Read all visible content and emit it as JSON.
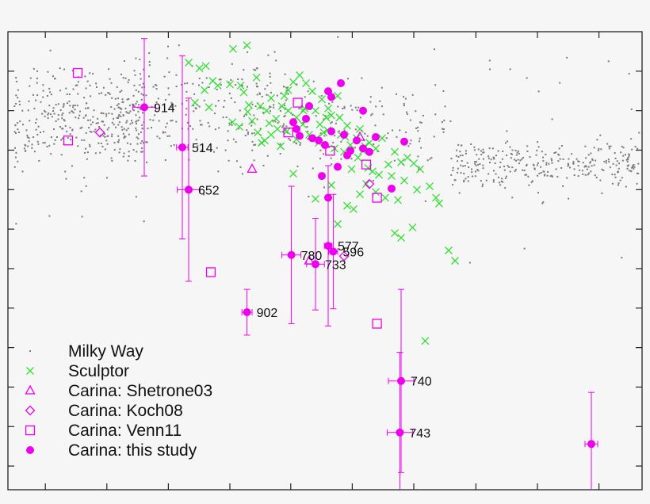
{
  "chart_data": {
    "type": "scatter",
    "title": "",
    "xlabel": "",
    "ylabel": "",
    "xlim": [
      0,
      100
    ],
    "ylim": [
      -3.0,
      1.0
    ],
    "grid": false,
    "legend_position": "bottom-left",
    "colors": {
      "milky_way": "#7a7a7a",
      "sculptor": "#33dd33",
      "carina": "#ee00ee"
    },
    "series": [
      {
        "name": "Milky Way",
        "marker": "dot",
        "color": "#7a7a7a",
        "regions": [
          {
            "x_range": [
              1,
              22
            ],
            "y_center": 0.25,
            "y_spread": 0.28,
            "count": 360
          },
          {
            "x_range": [
              15,
              45
            ],
            "y_center": 0.3,
            "y_spread": 0.32,
            "count": 260
          },
          {
            "x_range": [
              45,
              70
            ],
            "y_center": 0.18,
            "y_spread": 0.25,
            "count": 140
          },
          {
            "x_range": [
              70,
              100
            ],
            "y_center": -0.15,
            "y_spread": 0.14,
            "count": 320
          }
        ]
      },
      {
        "name": "Sculptor",
        "marker": "x",
        "color": "#33dd33",
        "points": [
          [
            31.2,
            0.7
          ],
          [
            35.5,
            0.85
          ],
          [
            37.7,
            0.88
          ],
          [
            30.2,
            0.68
          ],
          [
            35.0,
            0.54
          ],
          [
            32.3,
            0.57
          ],
          [
            39.2,
            0.6
          ],
          [
            37.2,
            0.47
          ],
          [
            36.7,
            0.53
          ],
          [
            33.1,
            0.53
          ],
          [
            31.7,
            0.34
          ],
          [
            35.4,
            0.21
          ],
          [
            40.8,
            0.31
          ],
          [
            39.4,
            0.12
          ],
          [
            40.5,
            0.05
          ],
          [
            44.2,
            0.31
          ],
          [
            45.5,
            0.25
          ],
          [
            46.8,
            0.33
          ],
          [
            48.5,
            0.31
          ],
          [
            49.2,
            0.19
          ],
          [
            50.2,
            0.25
          ],
          [
            51.0,
            0.27
          ],
          [
            50.4,
            0.14
          ],
          [
            52.5,
            0.1
          ],
          [
            53.2,
            0.08
          ],
          [
            54.0,
            0.01
          ],
          [
            55.0,
            0.07
          ],
          [
            56.0,
            -0.04
          ],
          [
            57.0,
            0.03
          ],
          [
            58.0,
            -0.02
          ],
          [
            59.0,
            0.07
          ],
          [
            60.0,
            -0.16
          ],
          [
            61.0,
            -0.05
          ],
          [
            62.0,
            -0.14
          ],
          [
            63.0,
            -0.1
          ],
          [
            64.0,
            -0.15
          ],
          [
            65.0,
            -0.2
          ],
          [
            60.5,
            -0.26
          ],
          [
            62.5,
            -0.3
          ],
          [
            64.5,
            -0.38
          ],
          [
            66.5,
            -0.35
          ],
          [
            67.5,
            -0.45
          ],
          [
            68.0,
            -0.5
          ],
          [
            58.0,
            -0.4
          ],
          [
            56.5,
            -0.33
          ],
          [
            55.5,
            -0.42
          ],
          [
            54.5,
            -0.55
          ],
          [
            53.5,
            -0.52
          ],
          [
            52.0,
            -0.68
          ],
          [
            48.5,
            -0.46
          ],
          [
            45.0,
            -0.24
          ],
          [
            42.3,
            0.24
          ],
          [
            41.5,
            0.1
          ],
          [
            43.0,
            0.0
          ],
          [
            57.5,
            -0.22
          ],
          [
            51.0,
            -0.34
          ],
          [
            59.5,
            -0.45
          ],
          [
            61.0,
            -0.76
          ],
          [
            62.0,
            -0.8
          ],
          [
            63.8,
            -0.71
          ],
          [
            69.5,
            -0.91
          ],
          [
            70.5,
            -1.0
          ],
          [
            65.8,
            -1.7
          ],
          [
            38.0,
            0.36
          ],
          [
            41.5,
            0.42
          ],
          [
            44.2,
            0.49
          ],
          [
            45.0,
            0.56
          ],
          [
            46.0,
            0.62
          ],
          [
            47.0,
            0.55
          ],
          [
            48.0,
            0.48
          ],
          [
            49.5,
            0.41
          ],
          [
            52.3,
            0.25
          ],
          [
            53.5,
            0.18
          ],
          [
            55.5,
            0.15
          ],
          [
            46.5,
            0.19
          ],
          [
            47.5,
            0.1
          ],
          [
            45.5,
            0.06
          ],
          [
            49.0,
            0.03
          ],
          [
            51.5,
            -0.02
          ],
          [
            55.2,
            -0.1
          ],
          [
            56.8,
            -0.19
          ],
          [
            50.5,
            0.33
          ],
          [
            43.2,
            0.35
          ],
          [
            42.5,
            0.15
          ],
          [
            40.0,
            0.03
          ],
          [
            36.5,
            0.17
          ],
          [
            38.5,
            0.22
          ],
          [
            39.8,
            0.35
          ],
          [
            37.8,
            0.3
          ],
          [
            44.0,
            0.13
          ],
          [
            48.7,
            0.07
          ],
          [
            53.0,
            -0.05
          ],
          [
            58.5,
            -0.25
          ],
          [
            61.5,
            -0.47
          ],
          [
            54.2,
            -0.2
          ],
          [
            46.6,
            0.31
          ],
          [
            31.0,
            0.49
          ],
          [
            29.5,
            0.38
          ],
          [
            28.5,
            0.73
          ],
          [
            52.0,
            0.44
          ],
          [
            49.8,
            0.12
          ],
          [
            56.3,
            0.0
          ],
          [
            43.6,
            0.44
          ],
          [
            41.2,
            0.2
          ]
        ]
      },
      {
        "name": "Carina: Shetrone03",
        "marker": "triangle-open",
        "color": "#ee00ee",
        "points": [
          [
            55.5,
            0.08
          ],
          [
            38.5,
            -0.2
          ],
          [
            47.5,
            -1.0
          ]
        ]
      },
      {
        "name": "Carina: Koch08",
        "marker": "diamond-open",
        "color": "#ee00ee",
        "points": [
          [
            14.5,
            0.12
          ],
          [
            57.0,
            -0.33
          ],
          [
            53.0,
            -0.96
          ]
        ]
      },
      {
        "name": "Carina: Venn11",
        "marker": "square-open",
        "color": "#ee00ee",
        "points": [
          [
            11.0,
            0.64
          ],
          [
            9.5,
            0.05
          ],
          [
            45.7,
            0.38
          ],
          [
            44.2,
            0.12
          ],
          [
            50.8,
            -0.04
          ],
          [
            56.5,
            -0.16
          ],
          [
            58.2,
            -0.45
          ],
          [
            32.0,
            -1.1
          ],
          [
            58.2,
            -1.55
          ]
        ]
      },
      {
        "name": "Carina: this study",
        "marker": "filled-circle",
        "color": "#ee00ee",
        "points": [
          {
            "x": 21.5,
            "y": 0.34,
            "xerr": 1.8,
            "yerr": 0.6,
            "label": "914"
          },
          {
            "x": 27.5,
            "y": -0.01,
            "xerr": 0.9,
            "yerr": 0.8,
            "label": "514"
          },
          {
            "x": 28.5,
            "y": -0.38,
            "xerr": 1.8,
            "yerr": 0.8,
            "label": "652"
          },
          {
            "x": 37.7,
            "y": -1.45,
            "xerr": 0.8,
            "yerr": 0.2,
            "label": "902"
          },
          {
            "x": 44.7,
            "y": -0.95,
            "xerr": 1.5,
            "yerr": 0.6,
            "label": "780"
          },
          {
            "x": 48.5,
            "y": -1.03,
            "xerr": 1.4,
            "yerr": 0.4,
            "label": "733"
          },
          {
            "x": 50.5,
            "y": -0.87,
            "xerr": 0.6,
            "yerr": 0.7,
            "label": "577"
          },
          {
            "x": 51.3,
            "y": -0.92,
            "xerr": 0.7,
            "yerr": 0.5,
            "label": "596"
          },
          {
            "x": 62.0,
            "y": -2.05,
            "xerr": 2.0,
            "yerr": 0.8,
            "label": "740"
          },
          {
            "x": 61.8,
            "y": -2.5,
            "xerr": 2.0,
            "yerr": 0.7,
            "label": "743"
          },
          {
            "x": 92.0,
            "y": -2.6,
            "xerr": 1.0,
            "yerr": 0.45,
            "label": ""
          },
          {
            "x": 52.5,
            "y": 0.55
          },
          {
            "x": 50.5,
            "y": 0.48
          },
          {
            "x": 51.0,
            "y": 0.43
          },
          {
            "x": 47.5,
            "y": 0.35
          },
          {
            "x": 56.0,
            "y": 0.31
          },
          {
            "x": 45.0,
            "y": 0.21
          },
          {
            "x": 45.5,
            "y": 0.15
          },
          {
            "x": 46.0,
            "y": 0.09
          },
          {
            "x": 48.0,
            "y": 0.07
          },
          {
            "x": 49.0,
            "y": 0.05
          },
          {
            "x": 51.0,
            "y": 0.13
          },
          {
            "x": 50.0,
            "y": 0.01
          },
          {
            "x": 53.0,
            "y": 0.1
          },
          {
            "x": 55.0,
            "y": 0.05
          },
          {
            "x": 54.0,
            "y": -0.04
          },
          {
            "x": 57.0,
            "y": -0.05
          },
          {
            "x": 62.5,
            "y": 0.04
          },
          {
            "x": 49.5,
            "y": -0.26
          },
          {
            "x": 52.0,
            "y": -0.18
          },
          {
            "x": 58.0,
            "y": 0.08
          },
          {
            "x": 60.5,
            "y": -0.37
          },
          {
            "x": 50.5,
            "y": -0.45
          },
          {
            "x": 53.5,
            "y": -0.08
          },
          {
            "x": 47.0,
            "y": 0.24
          },
          {
            "x": 56.0,
            "y": -0.02
          }
        ]
      }
    ],
    "legend": [
      {
        "label": "Milky Way",
        "marker": "dot"
      },
      {
        "label": "Sculptor",
        "marker": "x"
      },
      {
        "label": "Carina: Shetrone03",
        "marker": "triangle-open"
      },
      {
        "label": "Carina: Koch08",
        "marker": "diamond-open"
      },
      {
        "label": "Carina: Venn11",
        "marker": "square-open"
      },
      {
        "label": "Carina: this study",
        "marker": "filled-circle"
      }
    ]
  }
}
